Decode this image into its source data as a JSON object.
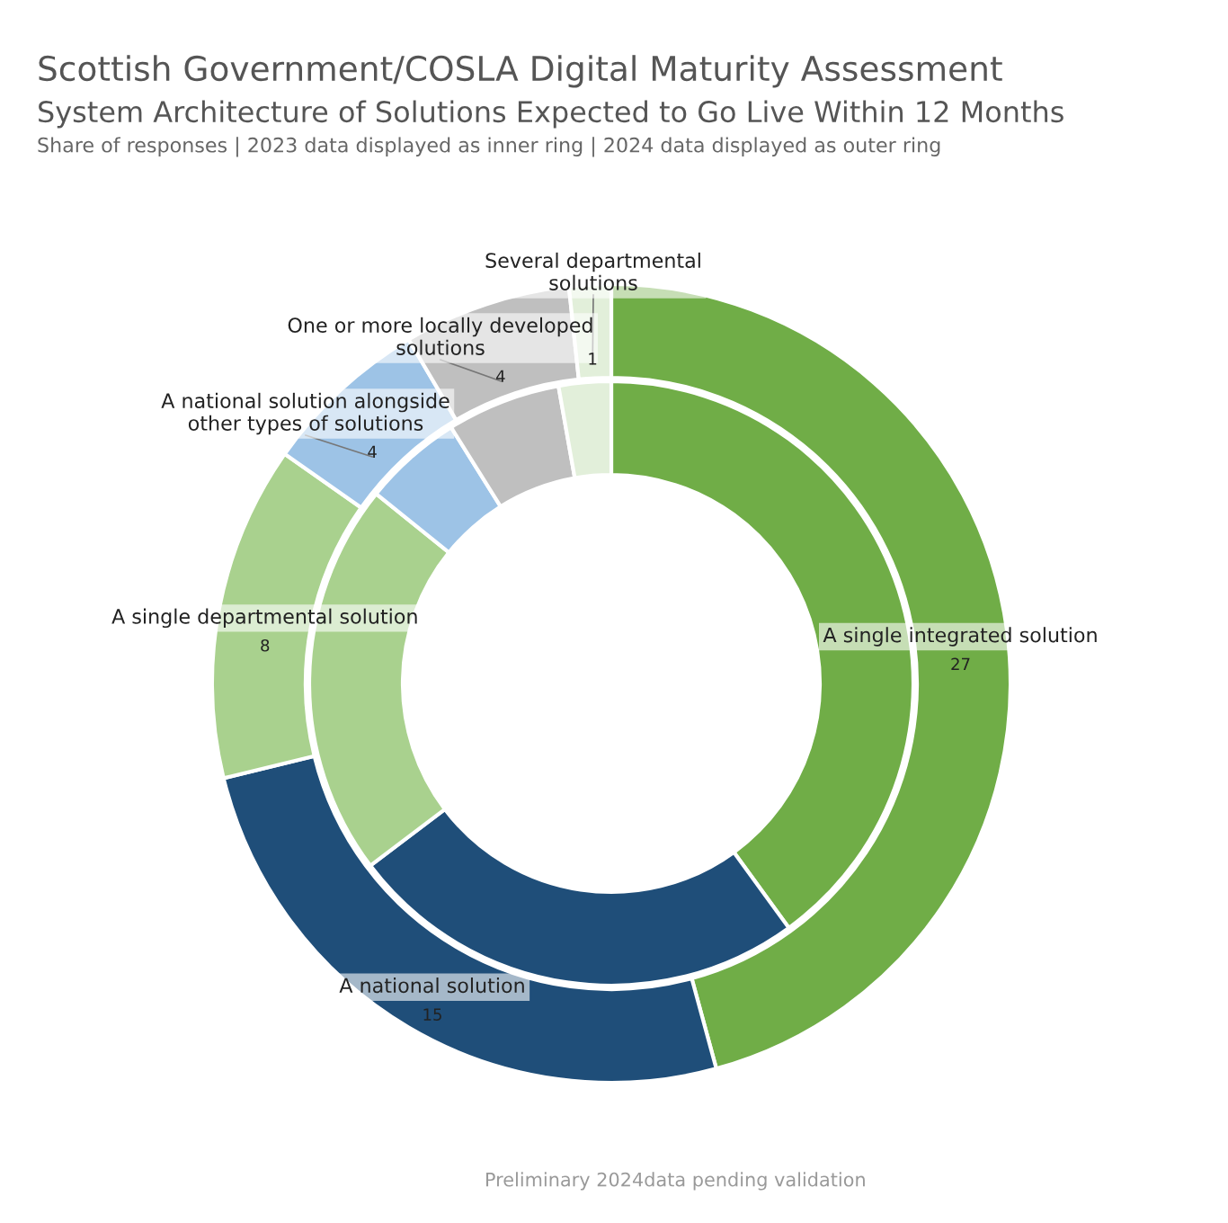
{
  "chart_data": {
    "type": "donut",
    "title": "Scottish Government/COSLA Digital Maturity Assessment",
    "subtitle": "System Architecture of Solutions Expected to Go Live Within 12 Months",
    "annotations": [
      "Share of responses | 2023 data displayed as inner ring | 2024 data displayed as outer ring",
      "Preliminary 2024data pending validation"
    ],
    "categories": [
      "A single integrated solution",
      "A national solution",
      "A single departmental solution",
      "A national solution alongside other types of solutions",
      "One or more locally developed solutions",
      "Several departmental solutions"
    ],
    "colors": [
      "#70ad47",
      "#1f4e79",
      "#a9d18e",
      "#9dc3e6",
      "#bfbfbf",
      "#e2efda"
    ],
    "series": [
      {
        "values": [
          27,
          15,
          8,
          4,
          4,
          1
        ],
        "data_labels": true
      },
      {
        "values": [
          40,
          24.7,
          21.1,
          5.3,
          6.1,
          2.8
        ]
      }
    ]
  }
}
